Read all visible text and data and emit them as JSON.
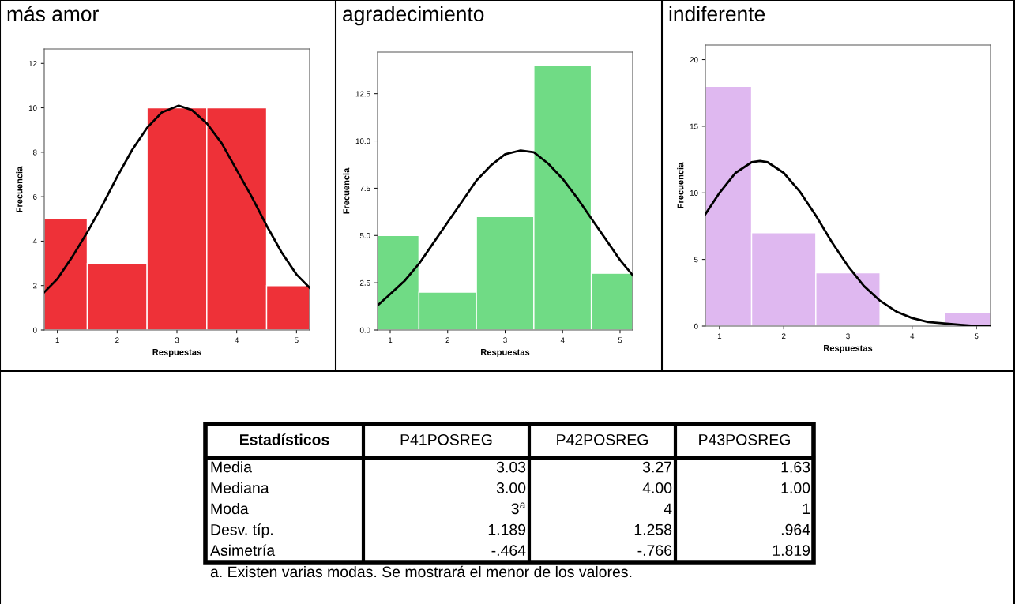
{
  "chart_data": [
    {
      "type": "histogram",
      "title": "más amor",
      "xlabel": "Respuestas",
      "ylabel": "Frecuencia",
      "bins": [
        0.78,
        1.5,
        2.5,
        3.5,
        4.5,
        5.22
      ],
      "values": [
        5,
        3,
        10,
        10,
        2
      ],
      "color": "#ee3138",
      "xlim": [
        0.78,
        5.22
      ],
      "xticks": [
        1,
        2,
        3,
        4,
        5
      ],
      "ylim": [
        0,
        12.65
      ],
      "yticks": [
        0,
        2,
        4,
        6,
        8,
        10,
        12
      ],
      "series": [
        {
          "type": "line",
          "color": "#000000",
          "x": [
            0.78,
            1.0,
            1.25,
            1.5,
            1.75,
            2.0,
            2.25,
            2.5,
            2.75,
            3.03,
            3.25,
            3.5,
            3.75,
            4.0,
            4.25,
            4.5,
            4.75,
            5.0,
            5.22
          ],
          "values": [
            1.7,
            2.3,
            3.3,
            4.4,
            5.6,
            6.9,
            8.1,
            9.1,
            9.8,
            10.1,
            9.9,
            9.3,
            8.4,
            7.2,
            6.0,
            4.7,
            3.5,
            2.5,
            1.9
          ]
        }
      ]
    },
    {
      "type": "histogram",
      "title": "agradecimiento",
      "xlabel": "Respuestas",
      "ylabel": "Frecuencia",
      "bins": [
        0.78,
        1.5,
        2.5,
        3.5,
        4.5,
        5.22
      ],
      "values": [
        5,
        2,
        6,
        14,
        3
      ],
      "color": "#70db85",
      "xlim": [
        0.78,
        5.22
      ],
      "xticks": [
        1,
        2,
        3,
        4,
        5
      ],
      "ylim": [
        0,
        14.7
      ],
      "yticks": [
        {
          "value": 0,
          "label": "0.0"
        },
        2.5,
        {
          "value": 5,
          "label": "5.0"
        },
        7.5,
        {
          "value": 10,
          "label": "10.0"
        },
        12.5
      ],
      "series": [
        {
          "type": "line",
          "color": "#000000",
          "x": [
            0.78,
            1.0,
            1.25,
            1.5,
            1.75,
            2.0,
            2.25,
            2.5,
            2.75,
            3.0,
            3.27,
            3.5,
            3.75,
            4.0,
            4.25,
            4.5,
            4.75,
            5.0,
            5.22
          ],
          "values": [
            1.3,
            1.9,
            2.6,
            3.5,
            4.6,
            5.7,
            6.8,
            7.9,
            8.7,
            9.3,
            9.5,
            9.4,
            8.8,
            8.0,
            7.0,
            5.9,
            4.8,
            3.7,
            2.9
          ]
        }
      ]
    },
    {
      "type": "histogram",
      "title": "indiferente",
      "xlabel": "Respuestas",
      "ylabel": "Frecuencia",
      "bins": [
        0.78,
        1.5,
        2.5,
        3.5,
        4.5,
        5.22
      ],
      "values": [
        18,
        7,
        4,
        0,
        1
      ],
      "color": "#dfb8f0",
      "xlim": [
        0.78,
        5.22
      ],
      "xticks": [
        1,
        2,
        3,
        4,
        5
      ],
      "ylim": [
        0,
        21.1
      ],
      "yticks": [
        0,
        5,
        10,
        15,
        20
      ],
      "series": [
        {
          "type": "line",
          "color": "#000000",
          "x": [
            0.78,
            1.0,
            1.25,
            1.5,
            1.63,
            1.75,
            2.0,
            2.25,
            2.5,
            2.75,
            3.0,
            3.25,
            3.5,
            3.75,
            4.0,
            4.25,
            4.5,
            4.75,
            5.0,
            5.22
          ],
          "values": [
            8.4,
            10.0,
            11.5,
            12.3,
            12.4,
            12.3,
            11.5,
            10.1,
            8.3,
            6.3,
            4.5,
            3.0,
            1.9,
            1.1,
            0.6,
            0.3,
            0.2,
            0.1,
            0.0,
            0.0
          ]
        }
      ]
    },
    {
      "type": "other",
      "title": "Estadísticos",
      "categories": [
        "P41POSREG",
        "P42POSREG",
        "P43POSREG"
      ],
      "y_categories": [
        "Media",
        "Mediana",
        "Moda",
        "Desv. típ.",
        "Asimetría"
      ],
      "cell_labels": [
        [
          "3.03",
          "3.27",
          "1.63"
        ],
        [
          "3.00",
          "4.00",
          "1.00"
        ],
        [
          "3$^{a}$",
          "4",
          "1"
        ],
        [
          "1.189",
          "1.258",
          ".964"
        ],
        [
          "-.464",
          "-.766",
          "1.819"
        ]
      ],
      "annotations": [
        "a. Existen varias modas. Se mostrará el menor de los valores."
      ]
    }
  ]
}
